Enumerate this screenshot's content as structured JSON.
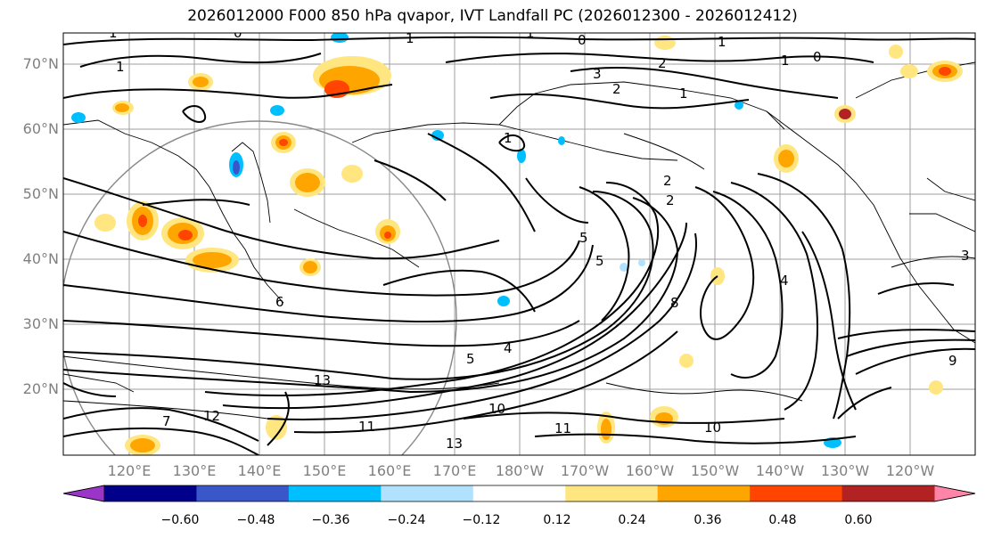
{
  "title": "2026012000 F000 850 hPa qvapor, IVT Landfall PC (2026012300 - 2026012412)",
  "lat_labels": [
    "70°N",
    "60°N",
    "50°N",
    "40°N",
    "30°N",
    "20°N"
  ],
  "lon_labels": [
    "120°E",
    "130°E",
    "140°E",
    "150°E",
    "160°E",
    "170°E",
    "180°W",
    "170°W",
    "160°W",
    "150°W",
    "140°W",
    "130°W",
    "120°W"
  ],
  "colorbar": {
    "ticks": [
      "−0.60",
      "−0.48",
      "−0.36",
      "−0.24",
      "−0.12",
      "0.12",
      "0.24",
      "0.36",
      "0.48",
      "0.60"
    ],
    "colors": [
      "#9b35c8",
      "#00008b",
      "#3a57c9",
      "#00bfff",
      "#b0e2ff",
      "#ffffff",
      "#ffe680",
      "#ffa500",
      "#ff4500",
      "#b22222",
      "#ff85a8"
    ]
  },
  "contour_labels": [
    "1",
    "1",
    "0",
    "1",
    "1",
    "0",
    "1",
    "2",
    "3",
    "2",
    "1",
    "1",
    "0",
    "1",
    "2",
    "2",
    "4",
    "5",
    "4",
    "6",
    "8",
    "5",
    "13",
    "10",
    "11",
    "13",
    "10",
    "12",
    "9",
    "7",
    "11",
    "3",
    "5"
  ],
  "colors": {
    "axis_text": "#808080",
    "frame": "#000000",
    "grid": "#888888"
  }
}
